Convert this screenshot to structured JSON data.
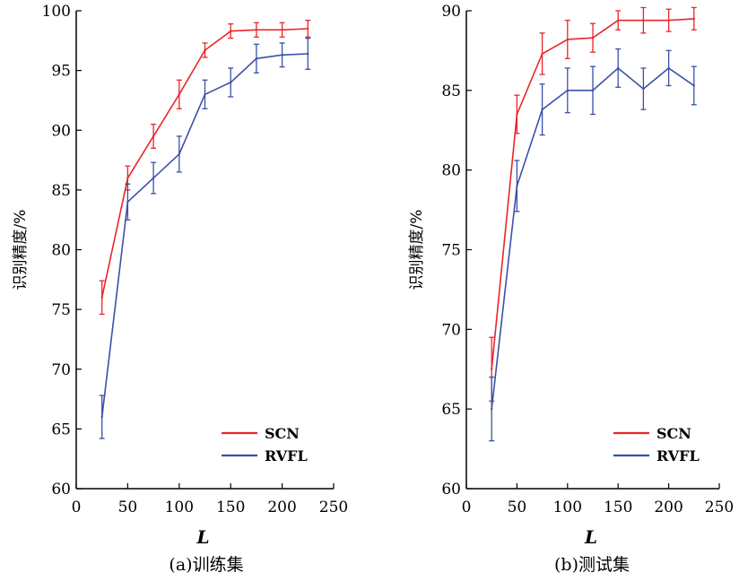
{
  "chart_data": [
    {
      "type": "line",
      "caption": "(a)训练集",
      "xlabel": "L",
      "ylabel": "识别精度/%",
      "xlim": [
        0,
        250
      ],
      "ylim": [
        60,
        100
      ],
      "xticks": [
        0,
        50,
        100,
        150,
        200,
        250
      ],
      "yticks": [
        60,
        65,
        70,
        75,
        80,
        85,
        90,
        95,
        100
      ],
      "legend_position": "bottom-right",
      "series": [
        {
          "name": "SCN",
          "color": "#e8262a",
          "x": [
            25,
            50,
            75,
            100,
            125,
            150,
            175,
            200,
            225
          ],
          "y": [
            76.0,
            86.0,
            89.5,
            93.0,
            96.7,
            98.3,
            98.4,
            98.4,
            98.5
          ],
          "err": [
            1.4,
            1.0,
            1.0,
            1.2,
            0.6,
            0.6,
            0.6,
            0.6,
            0.7
          ]
        },
        {
          "name": "RVFL",
          "color": "#3a4fa8",
          "x": [
            25,
            50,
            75,
            100,
            125,
            150,
            175,
            200,
            225
          ],
          "y": [
            66.0,
            84.0,
            86.0,
            88.0,
            93.0,
            94.0,
            96.0,
            96.3,
            96.4
          ],
          "err": [
            1.8,
            1.5,
            1.3,
            1.5,
            1.2,
            1.2,
            1.2,
            1.0,
            1.3
          ]
        }
      ]
    },
    {
      "type": "line",
      "caption": "(b)测试集",
      "xlabel": "L",
      "ylabel": "识别精度/%",
      "xlim": [
        0,
        250
      ],
      "ylim": [
        60,
        90
      ],
      "xticks": [
        0,
        50,
        100,
        150,
        200,
        250
      ],
      "yticks": [
        60,
        65,
        70,
        75,
        80,
        85,
        90
      ],
      "legend_position": "bottom-right",
      "series": [
        {
          "name": "SCN",
          "color": "#e8262a",
          "x": [
            25,
            50,
            75,
            100,
            125,
            150,
            175,
            200,
            225
          ],
          "y": [
            67.5,
            83.5,
            87.3,
            88.2,
            88.3,
            89.4,
            89.4,
            89.4,
            89.5
          ],
          "err": [
            2.0,
            1.2,
            1.3,
            1.2,
            0.9,
            0.6,
            0.8,
            0.7,
            0.7
          ]
        },
        {
          "name": "RVFL",
          "color": "#3a4fa8",
          "x": [
            25,
            50,
            75,
            100,
            125,
            150,
            175,
            200,
            225
          ],
          "y": [
            65.0,
            79.0,
            83.8,
            85.0,
            85.0,
            86.4,
            85.1,
            86.4,
            85.3
          ],
          "err": [
            2.0,
            1.6,
            1.6,
            1.4,
            1.5,
            1.2,
            1.3,
            1.1,
            1.2
          ]
        }
      ]
    }
  ]
}
